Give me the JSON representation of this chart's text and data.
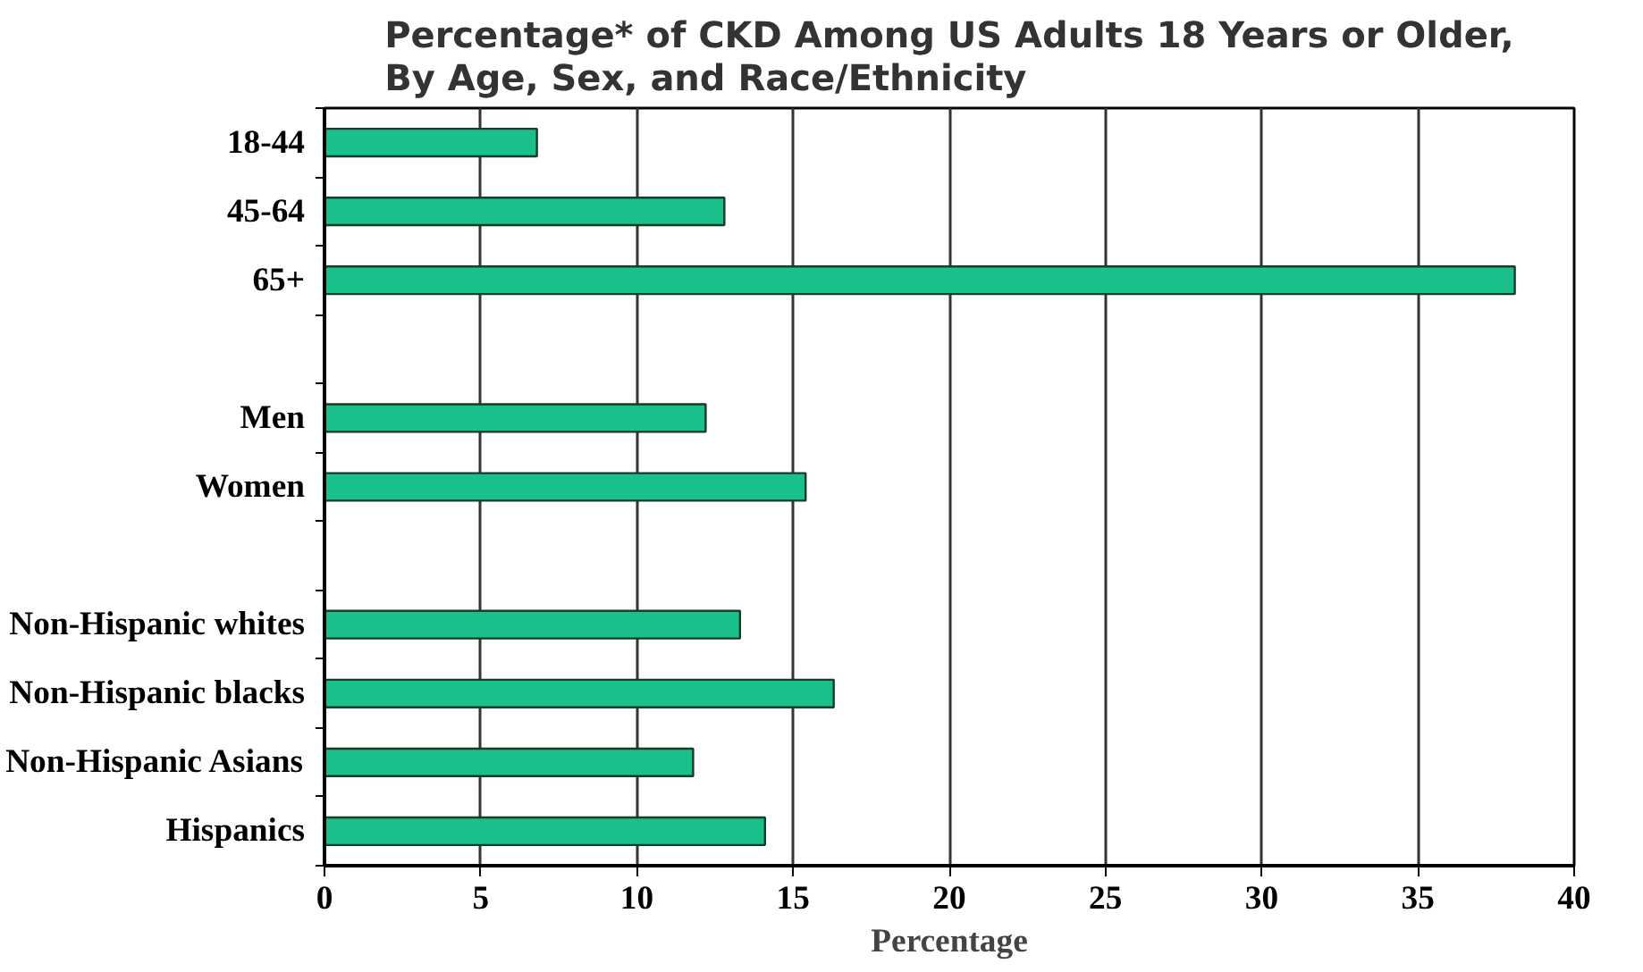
{
  "chart_data": {
    "type": "bar",
    "orientation": "horizontal",
    "title": "Percentage* of CKD Among US Adults 18 Years or Older,\nBy Age, Sex, and Race/Ethnicity",
    "xlabel": "Percentage",
    "categories": [
      "18-44",
      "45-64",
      "65+",
      null,
      "Men",
      "Women",
      null,
      "Non-Hispanic whites",
      "Non-Hispanic blacks",
      "Non-Hispanic Asians",
      "Hispanics"
    ],
    "values": [
      6.8,
      12.8,
      38.1,
      null,
      12.2,
      15.4,
      null,
      13.3,
      16.3,
      11.8,
      14.1
    ],
    "color": "#19c08c",
    "xlim": [
      0,
      40
    ],
    "xticks": [
      0,
      5,
      10,
      15,
      20,
      25,
      30,
      35,
      40
    ],
    "grid": "x"
  }
}
